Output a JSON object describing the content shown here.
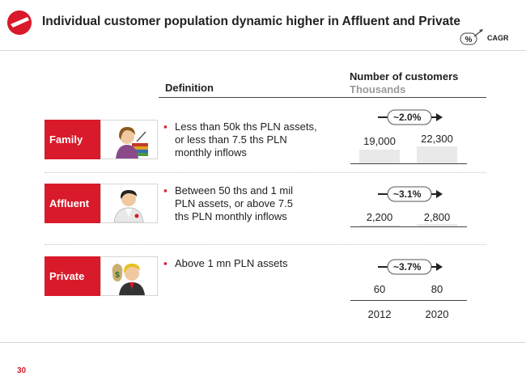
{
  "header": {
    "title": "Individual customer population dynamic higher in Affluent and Private",
    "cagr_symbol": "%",
    "cagr_label": "CAGR",
    "brand_color": "#d91a2a"
  },
  "columns": {
    "definition_heading": "Definition",
    "customers_heading": "Number of customers",
    "customers_unit": "Thousands"
  },
  "segments": [
    {
      "label": "Family",
      "icon": "family-user-icon",
      "definition": "Less than 50k ths PLN assets, or less than 7.5 ths PLN monthly inflows",
      "cagr": "~2.0%",
      "values": [
        "19,000",
        "22,300"
      ]
    },
    {
      "label": "Affluent",
      "icon": "affluent-user-icon",
      "definition": "Between 50 ths and 1 mil PLN assets, or above 7.5 ths PLN monthly inflows",
      "cagr": "~3.1%",
      "values": [
        "2,200",
        "2,800"
      ]
    },
    {
      "label": "Private",
      "icon": "private-user-icon",
      "definition": "Above 1 mn PLN assets",
      "cagr": "~3.7%",
      "values": [
        "60",
        "80"
      ]
    }
  ],
  "years": [
    "2012",
    "2020"
  ],
  "footer": {
    "page_number": "30"
  }
}
